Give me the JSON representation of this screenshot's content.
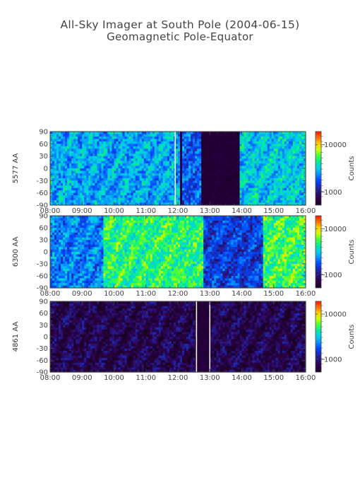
{
  "title": "All-Sky Imager at South Pole (2004-06-15)",
  "subtitle": "Geomagnetic Pole-Equator",
  "chart_data": [
    {
      "type": "heatmap",
      "ylabel": "5577 AA",
      "x_ticks": [
        "08:00",
        "09:00",
        "10:00",
        "11:00",
        "12:00",
        "13:00",
        "14:00",
        "15:00",
        "16:00"
      ],
      "y_ticks": [
        "90",
        "60",
        "30",
        "0",
        "-30",
        "-60",
        "-90"
      ],
      "xlim": [
        "08:00",
        "16:00"
      ],
      "ylim": [
        -90,
        90
      ],
      "colorbar": {
        "label": "Counts",
        "ticks": [
          "10000",
          "1000"
        ],
        "scale": "log"
      },
      "data_gaps": [
        "11:55",
        "13:00-13:30 low counts"
      ],
      "features": [
        {
          "start": "08:00",
          "end": "12:05",
          "intensity": 0.45
        },
        {
          "start": "12:10",
          "end": "12:45",
          "intensity": 0.35
        },
        {
          "start": "12:45",
          "end": "13:55",
          "intensity": 0.02
        },
        {
          "start": "13:55",
          "end": "16:00",
          "intensity": 0.5
        }
      ]
    },
    {
      "type": "heatmap",
      "ylabel": "6300 AA",
      "x_ticks": [
        "08:00",
        "09:00",
        "10:00",
        "11:00",
        "12:00",
        "13:00",
        "14:00",
        "15:00",
        "16:00"
      ],
      "y_ticks": [
        "90",
        "60",
        "30",
        "0",
        "-30",
        "-60",
        "-90"
      ],
      "xlim": [
        "08:00",
        "16:00"
      ],
      "ylim": [
        -90,
        90
      ],
      "colorbar": {
        "label": "Counts",
        "ticks": [
          "10000",
          "1000"
        ],
        "scale": "log"
      },
      "features": [
        {
          "start": "08:00",
          "end": "09:40",
          "intensity": 0.4
        },
        {
          "start": "09:40",
          "end": "12:50",
          "intensity": 0.62
        },
        {
          "start": "12:50",
          "end": "14:40",
          "intensity": 0.3
        },
        {
          "start": "14:40",
          "end": "16:00",
          "intensity": 0.65
        }
      ]
    },
    {
      "type": "heatmap",
      "ylabel": "4861 AA",
      "x_ticks": [
        "08:00",
        "09:00",
        "10:00",
        "11:00",
        "12:00",
        "13:00",
        "14:00",
        "15:00",
        "16:00"
      ],
      "y_ticks": [
        "90",
        "60",
        "30",
        "0",
        "-30",
        "-60",
        "-90"
      ],
      "xlim": [
        "08:00",
        "16:00"
      ],
      "ylim": [
        -90,
        90
      ],
      "colorbar": {
        "label": "Counts",
        "ticks": [
          "10000",
          "1000"
        ],
        "scale": "log"
      },
      "data_gaps": [
        "12:35",
        "13:00"
      ],
      "features": [
        {
          "start": "08:00",
          "end": "16:00",
          "intensity": 0.1
        },
        {
          "start": "12:35",
          "end": "13:00",
          "intensity": 0.03
        }
      ]
    }
  ],
  "colors": {
    "colormap": [
      "#1a0024",
      "#2a0045",
      "#2a1070",
      "#1a2ab0",
      "#0048ff",
      "#0a8cff",
      "#00cfe8",
      "#00e8a0",
      "#40ff40",
      "#c8ff00",
      "#ffd000",
      "#ff7000",
      "#ff1a00"
    ],
    "axis": "#444444",
    "gap_line": "#ffffff"
  }
}
